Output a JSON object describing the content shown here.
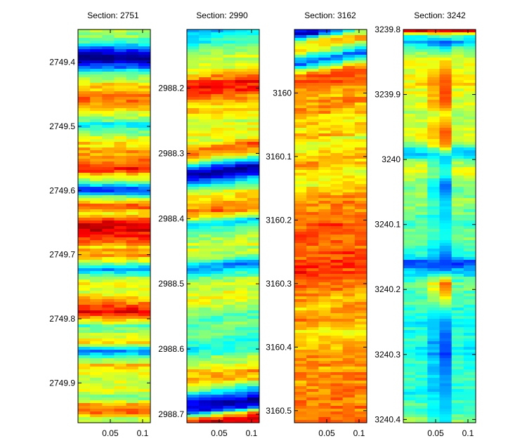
{
  "chart_data": [
    {
      "type": "heatmap",
      "title": "Section: 2751",
      "colormap": "jet",
      "ylim": [
        2749.349,
        2749.962
      ],
      "y_reversed": true,
      "yticks": [
        "2749.4",
        "2749.5",
        "2749.6",
        "2749.7",
        "2749.8",
        "2749.9"
      ],
      "xlim": [
        0.0,
        0.112
      ],
      "xticks": [
        "0.05",
        "0.1"
      ],
      "bands": [
        {
          "y": 2749.35,
          "v": 0.55
        },
        {
          "y": 2749.362,
          "v": 0.5
        },
        {
          "y": 2749.372,
          "v": 0.38
        },
        {
          "y": 2749.382,
          "v": 0.15
        },
        {
          "y": 2749.39,
          "v": 0.03
        },
        {
          "y": 2749.398,
          "v": 0.02
        },
        {
          "y": 2749.408,
          "v": 0.25
        },
        {
          "y": 2749.418,
          "v": 0.45
        },
        {
          "y": 2749.43,
          "v": 0.6
        },
        {
          "y": 2749.445,
          "v": 0.7
        },
        {
          "y": 2749.46,
          "v": 0.76
        },
        {
          "y": 2749.475,
          "v": 0.65
        },
        {
          "y": 2749.49,
          "v": 0.48
        },
        {
          "y": 2749.5,
          "v": 0.36
        },
        {
          "y": 2749.51,
          "v": 0.5
        },
        {
          "y": 2749.522,
          "v": 0.63
        },
        {
          "y": 2749.537,
          "v": 0.68
        },
        {
          "y": 2749.552,
          "v": 0.74
        },
        {
          "y": 2749.565,
          "v": 0.86
        },
        {
          "y": 2749.575,
          "v": 0.7
        },
        {
          "y": 2749.585,
          "v": 0.5
        },
        {
          "y": 2749.593,
          "v": 0.3
        },
        {
          "y": 2749.6,
          "v": 0.15
        },
        {
          "y": 2749.608,
          "v": 0.4
        },
        {
          "y": 2749.615,
          "v": 0.58
        },
        {
          "y": 2749.625,
          "v": 0.86
        },
        {
          "y": 2749.635,
          "v": 0.62
        },
        {
          "y": 2749.645,
          "v": 0.82
        },
        {
          "y": 2749.655,
          "v": 0.9
        },
        {
          "y": 2749.667,
          "v": 0.87
        },
        {
          "y": 2749.68,
          "v": 0.78
        },
        {
          "y": 2749.69,
          "v": 0.66
        },
        {
          "y": 2749.7,
          "v": 0.74
        },
        {
          "y": 2749.712,
          "v": 0.55
        },
        {
          "y": 2749.722,
          "v": 0.28
        },
        {
          "y": 2749.732,
          "v": 0.48
        },
        {
          "y": 2749.745,
          "v": 0.62
        },
        {
          "y": 2749.76,
          "v": 0.58
        },
        {
          "y": 2749.772,
          "v": 0.7
        },
        {
          "y": 2749.782,
          "v": 0.82
        },
        {
          "y": 2749.79,
          "v": 0.92
        },
        {
          "y": 2749.8,
          "v": 0.68
        },
        {
          "y": 2749.812,
          "v": 0.45
        },
        {
          "y": 2749.825,
          "v": 0.58
        },
        {
          "y": 2749.838,
          "v": 0.66
        },
        {
          "y": 2749.85,
          "v": 0.22
        },
        {
          "y": 2749.86,
          "v": 0.48
        },
        {
          "y": 2749.872,
          "v": 0.66
        },
        {
          "y": 2749.885,
          "v": 0.6
        },
        {
          "y": 2749.897,
          "v": 0.55
        },
        {
          "y": 2749.91,
          "v": 0.63
        },
        {
          "y": 2749.922,
          "v": 0.48
        },
        {
          "y": 2749.932,
          "v": 0.66
        },
        {
          "y": 2749.945,
          "v": 0.84
        },
        {
          "y": 2749.955,
          "v": 0.55
        }
      ]
    },
    {
      "type": "heatmap",
      "title": "Section: 2990",
      "colormap": "jet",
      "ylim": [
        2988.11,
        2988.713
      ],
      "y_reversed": true,
      "yticks": [
        "2988.2",
        "2988.3",
        "2988.4",
        "2988.5",
        "2988.6",
        "2988.7"
      ],
      "xlim": [
        0.0,
        0.112
      ],
      "xticks": [
        "0.05",
        "0.1"
      ],
      "bands": [
        {
          "y": 2988.112,
          "v": 0.3
        },
        {
          "y": 2988.125,
          "v": 0.4
        },
        {
          "y": 2988.14,
          "v": 0.5
        },
        {
          "y": 2988.155,
          "v": 0.56
        },
        {
          "y": 2988.17,
          "v": 0.6
        },
        {
          "y": 2988.182,
          "v": 0.76
        },
        {
          "y": 2988.195,
          "v": 0.86
        },
        {
          "y": 2988.207,
          "v": 0.8
        },
        {
          "y": 2988.22,
          "v": 0.7
        },
        {
          "y": 2988.235,
          "v": 0.64
        },
        {
          "y": 2988.25,
          "v": 0.58
        },
        {
          "y": 2988.265,
          "v": 0.62
        },
        {
          "y": 2988.28,
          "v": 0.58
        },
        {
          "y": 2988.29,
          "v": 0.8
        },
        {
          "y": 2988.3,
          "v": 0.74
        },
        {
          "y": 2988.31,
          "v": 0.5
        },
        {
          "y": 2988.318,
          "v": 0.22
        },
        {
          "y": 2988.326,
          "v": 0.04
        },
        {
          "y": 2988.334,
          "v": 0.1
        },
        {
          "y": 2988.342,
          "v": 0.3
        },
        {
          "y": 2988.352,
          "v": 0.5
        },
        {
          "y": 2988.362,
          "v": 0.62
        },
        {
          "y": 2988.375,
          "v": 0.7
        },
        {
          "y": 2988.387,
          "v": 0.78
        },
        {
          "y": 2988.397,
          "v": 0.58
        },
        {
          "y": 2988.406,
          "v": 0.33
        },
        {
          "y": 2988.416,
          "v": 0.45
        },
        {
          "y": 2988.43,
          "v": 0.55
        },
        {
          "y": 2988.445,
          "v": 0.6
        },
        {
          "y": 2988.46,
          "v": 0.5
        },
        {
          "y": 2988.472,
          "v": 0.25
        },
        {
          "y": 2988.48,
          "v": 0.35
        },
        {
          "y": 2988.492,
          "v": 0.5
        },
        {
          "y": 2988.505,
          "v": 0.58
        },
        {
          "y": 2988.52,
          "v": 0.6
        },
        {
          "y": 2988.535,
          "v": 0.55
        },
        {
          "y": 2988.55,
          "v": 0.45
        },
        {
          "y": 2988.565,
          "v": 0.52
        },
        {
          "y": 2988.58,
          "v": 0.45
        },
        {
          "y": 2988.595,
          "v": 0.38
        },
        {
          "y": 2988.61,
          "v": 0.48
        },
        {
          "y": 2988.625,
          "v": 0.6
        },
        {
          "y": 2988.64,
          "v": 0.72
        },
        {
          "y": 2988.652,
          "v": 0.65
        },
        {
          "y": 2988.662,
          "v": 0.4
        },
        {
          "y": 2988.672,
          "v": 0.2
        },
        {
          "y": 2988.682,
          "v": 0.05
        },
        {
          "y": 2988.692,
          "v": 0.12
        },
        {
          "y": 2988.702,
          "v": 0.7
        },
        {
          "y": 2988.71,
          "v": 0.9
        }
      ]
    },
    {
      "type": "heatmap",
      "title": "Section: 3162",
      "colormap": "jet",
      "ylim": [
        3159.9,
        3160.519
      ],
      "y_reversed": true,
      "yticks": [
        "3160",
        "3160.1",
        "3160.2",
        "3160.3",
        "3160.4",
        "3160.5"
      ],
      "xlim": [
        0.0,
        0.112
      ],
      "xticks": [
        "0.05",
        "0.1"
      ],
      "bands": [
        {
          "y": 3159.902,
          "v": 0.12
        },
        {
          "y": 3159.912,
          "v": 0.58
        },
        {
          "y": 3159.922,
          "v": 0.7
        },
        {
          "y": 3159.935,
          "v": 0.45
        },
        {
          "y": 3159.945,
          "v": 0.2
        },
        {
          "y": 3159.955,
          "v": 0.5
        },
        {
          "y": 3159.965,
          "v": 0.75
        },
        {
          "y": 3159.975,
          "v": 0.82
        },
        {
          "y": 3159.99,
          "v": 0.72
        },
        {
          "y": 3160.005,
          "v": 0.7
        },
        {
          "y": 3160.02,
          "v": 0.74
        },
        {
          "y": 3160.035,
          "v": 0.68
        },
        {
          "y": 3160.05,
          "v": 0.62
        },
        {
          "y": 3160.065,
          "v": 0.7
        },
        {
          "y": 3160.078,
          "v": 0.58
        },
        {
          "y": 3160.09,
          "v": 0.66
        },
        {
          "y": 3160.105,
          "v": 0.72
        },
        {
          "y": 3160.12,
          "v": 0.64
        },
        {
          "y": 3160.135,
          "v": 0.6
        },
        {
          "y": 3160.15,
          "v": 0.65
        },
        {
          "y": 3160.165,
          "v": 0.7
        },
        {
          "y": 3160.18,
          "v": 0.74
        },
        {
          "y": 3160.195,
          "v": 0.76
        },
        {
          "y": 3160.21,
          "v": 0.8
        },
        {
          "y": 3160.225,
          "v": 0.78
        },
        {
          "y": 3160.24,
          "v": 0.76
        },
        {
          "y": 3160.255,
          "v": 0.8
        },
        {
          "y": 3160.27,
          "v": 0.84
        },
        {
          "y": 3160.285,
          "v": 0.8
        },
        {
          "y": 3160.3,
          "v": 0.76
        },
        {
          "y": 3160.315,
          "v": 0.72
        },
        {
          "y": 3160.33,
          "v": 0.66
        },
        {
          "y": 3160.345,
          "v": 0.74
        },
        {
          "y": 3160.36,
          "v": 0.7
        },
        {
          "y": 3160.375,
          "v": 0.64
        },
        {
          "y": 3160.39,
          "v": 0.66
        },
        {
          "y": 3160.405,
          "v": 0.72
        },
        {
          "y": 3160.42,
          "v": 0.74
        },
        {
          "y": 3160.435,
          "v": 0.72
        },
        {
          "y": 3160.45,
          "v": 0.74
        },
        {
          "y": 3160.465,
          "v": 0.76
        },
        {
          "y": 3160.48,
          "v": 0.78
        },
        {
          "y": 3160.495,
          "v": 0.74
        },
        {
          "y": 3160.51,
          "v": 0.76
        }
      ]
    },
    {
      "type": "heatmap",
      "title": "Section: 3242",
      "colormap": "jet",
      "ylim": [
        3239.8,
        3240.405
      ],
      "y_reversed": true,
      "yticks": [
        "3239.8",
        "3239.9",
        "3240",
        "3240.1",
        "3240.2",
        "3240.3",
        "3240.4"
      ],
      "xlim": [
        0.0,
        0.112
      ],
      "xticks": [
        "0.05",
        "0.1"
      ],
      "bands": [
        {
          "y": 3239.801,
          "v": 0.92
        },
        {
          "y": 3239.81,
          "v": 0.42
        },
        {
          "y": 3239.82,
          "v": 0.28
        },
        {
          "y": 3239.83,
          "v": 0.45
        },
        {
          "y": 3239.842,
          "v": 0.58
        },
        {
          "y": 3239.855,
          "v": 0.6
        },
        {
          "y": 3239.87,
          "v": 0.62
        },
        {
          "y": 3239.885,
          "v": 0.64
        },
        {
          "y": 3239.9,
          "v": 0.6
        },
        {
          "y": 3239.915,
          "v": 0.58
        },
        {
          "y": 3239.93,
          "v": 0.55
        },
        {
          "y": 3239.945,
          "v": 0.58
        },
        {
          "y": 3239.96,
          "v": 0.6
        },
        {
          "y": 3239.975,
          "v": 0.55
        },
        {
          "y": 3239.985,
          "v": 0.35
        },
        {
          "y": 3239.993,
          "v": 0.3
        },
        {
          "y": 3240.002,
          "v": 0.5
        },
        {
          "y": 3240.015,
          "v": 0.6
        },
        {
          "y": 3240.03,
          "v": 0.55
        },
        {
          "y": 3240.045,
          "v": 0.45
        },
        {
          "y": 3240.06,
          "v": 0.52
        },
        {
          "y": 3240.075,
          "v": 0.5
        },
        {
          "y": 3240.09,
          "v": 0.45
        },
        {
          "y": 3240.105,
          "v": 0.48
        },
        {
          "y": 3240.12,
          "v": 0.5
        },
        {
          "y": 3240.135,
          "v": 0.45
        },
        {
          "y": 3240.15,
          "v": 0.35
        },
        {
          "y": 3240.16,
          "v": 0.2
        },
        {
          "y": 3240.17,
          "v": 0.3
        },
        {
          "y": 3240.182,
          "v": 0.42
        },
        {
          "y": 3240.195,
          "v": 0.48
        },
        {
          "y": 3240.21,
          "v": 0.45
        },
        {
          "y": 3240.225,
          "v": 0.42
        },
        {
          "y": 3240.24,
          "v": 0.4
        },
        {
          "y": 3240.255,
          "v": 0.38
        },
        {
          "y": 3240.27,
          "v": 0.42
        },
        {
          "y": 3240.285,
          "v": 0.4
        },
        {
          "y": 3240.3,
          "v": 0.38
        },
        {
          "y": 3240.315,
          "v": 0.42
        },
        {
          "y": 3240.33,
          "v": 0.4
        },
        {
          "y": 3240.345,
          "v": 0.42
        },
        {
          "y": 3240.36,
          "v": 0.38
        },
        {
          "y": 3240.375,
          "v": 0.42
        },
        {
          "y": 3240.39,
          "v": 0.45
        },
        {
          "y": 3240.402,
          "v": 0.5
        }
      ],
      "center_column": [
        {
          "y": 3239.8,
          "v": 0.95
        },
        {
          "y": 3239.82,
          "v": 0.15
        },
        {
          "y": 3239.85,
          "v": 0.7
        },
        {
          "y": 3239.88,
          "v": 0.85
        },
        {
          "y": 3239.91,
          "v": 0.9
        },
        {
          "y": 3239.93,
          "v": 0.65
        },
        {
          "y": 3239.96,
          "v": 0.88
        },
        {
          "y": 3239.98,
          "v": 0.8
        },
        {
          "y": 3240.0,
          "v": 0.25
        },
        {
          "y": 3240.02,
          "v": 0.35
        },
        {
          "y": 3240.04,
          "v": 0.1
        },
        {
          "y": 3240.06,
          "v": 0.25
        },
        {
          "y": 3240.09,
          "v": 0.3
        },
        {
          "y": 3240.12,
          "v": 0.35
        },
        {
          "y": 3240.15,
          "v": 0.15
        },
        {
          "y": 3240.17,
          "v": 0.2
        },
        {
          "y": 3240.19,
          "v": 0.9
        },
        {
          "y": 3240.21,
          "v": 0.75
        },
        {
          "y": 3240.24,
          "v": 0.3
        },
        {
          "y": 3240.27,
          "v": 0.15
        },
        {
          "y": 3240.3,
          "v": 0.1
        },
        {
          "y": 3240.33,
          "v": 0.2
        },
        {
          "y": 3240.36,
          "v": 0.25
        },
        {
          "y": 3240.39,
          "v": 0.3
        }
      ]
    }
  ]
}
